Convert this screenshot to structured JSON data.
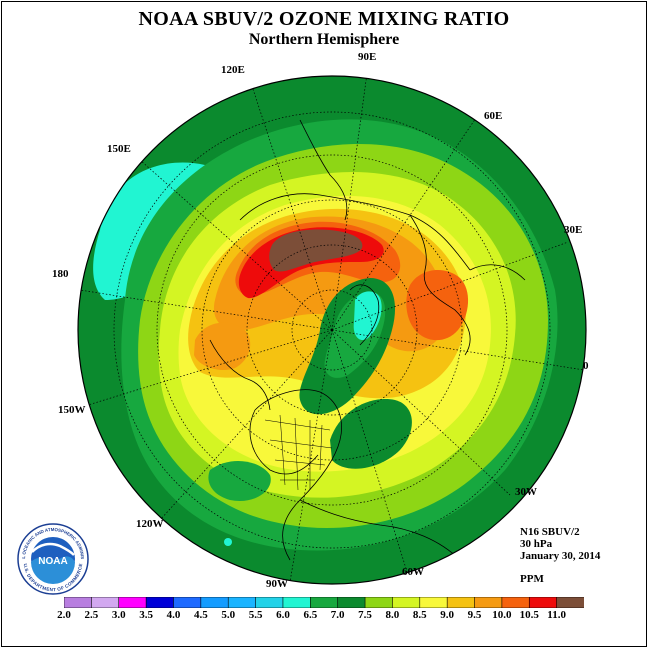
{
  "title": "NOAA SBUV/2 OZONE MIXING RATIO",
  "subtitle": "Northern Hemisphere",
  "longitude_labels": [
    "90E",
    "60E",
    "30E",
    "0",
    "30W",
    "60W",
    "90W",
    "120W",
    "150W",
    "180",
    "150E",
    "120E"
  ],
  "info": {
    "satellite": "N16 SBUV/2",
    "level": "30 hPa",
    "date": "January 30, 2014",
    "units": "PPM"
  },
  "logo": {
    "text": "NOAA",
    "ring_text": "NATIONAL OCEANIC AND ATMOSPHERIC ADMINISTRATION",
    "dept_text": "U.S. DEPARTMENT OF COMMERCE"
  },
  "colorbar": {
    "ticks": [
      "2.0",
      "2.5",
      "3.0",
      "3.5",
      "4.0",
      "4.5",
      "5.0",
      "5.5",
      "6.0",
      "6.5",
      "7.0",
      "7.5",
      "8.0",
      "8.5",
      "9.0",
      "9.5",
      "10.0",
      "10.5",
      "11.0"
    ],
    "colors": [
      "#b87ee0",
      "#d2a8f0",
      "#ff00ff",
      "#0000d8",
      "#1e6aff",
      "#149cff",
      "#1ab4ff",
      "#22d2e8",
      "#21f5d2",
      "#17a83f",
      "#0b8a2e",
      "#8ed615",
      "#d4f523",
      "#f8f83a",
      "#f5c211",
      "#f59a11",
      "#f5620e",
      "#ee0b0b",
      "#7c4e38"
    ]
  }
}
